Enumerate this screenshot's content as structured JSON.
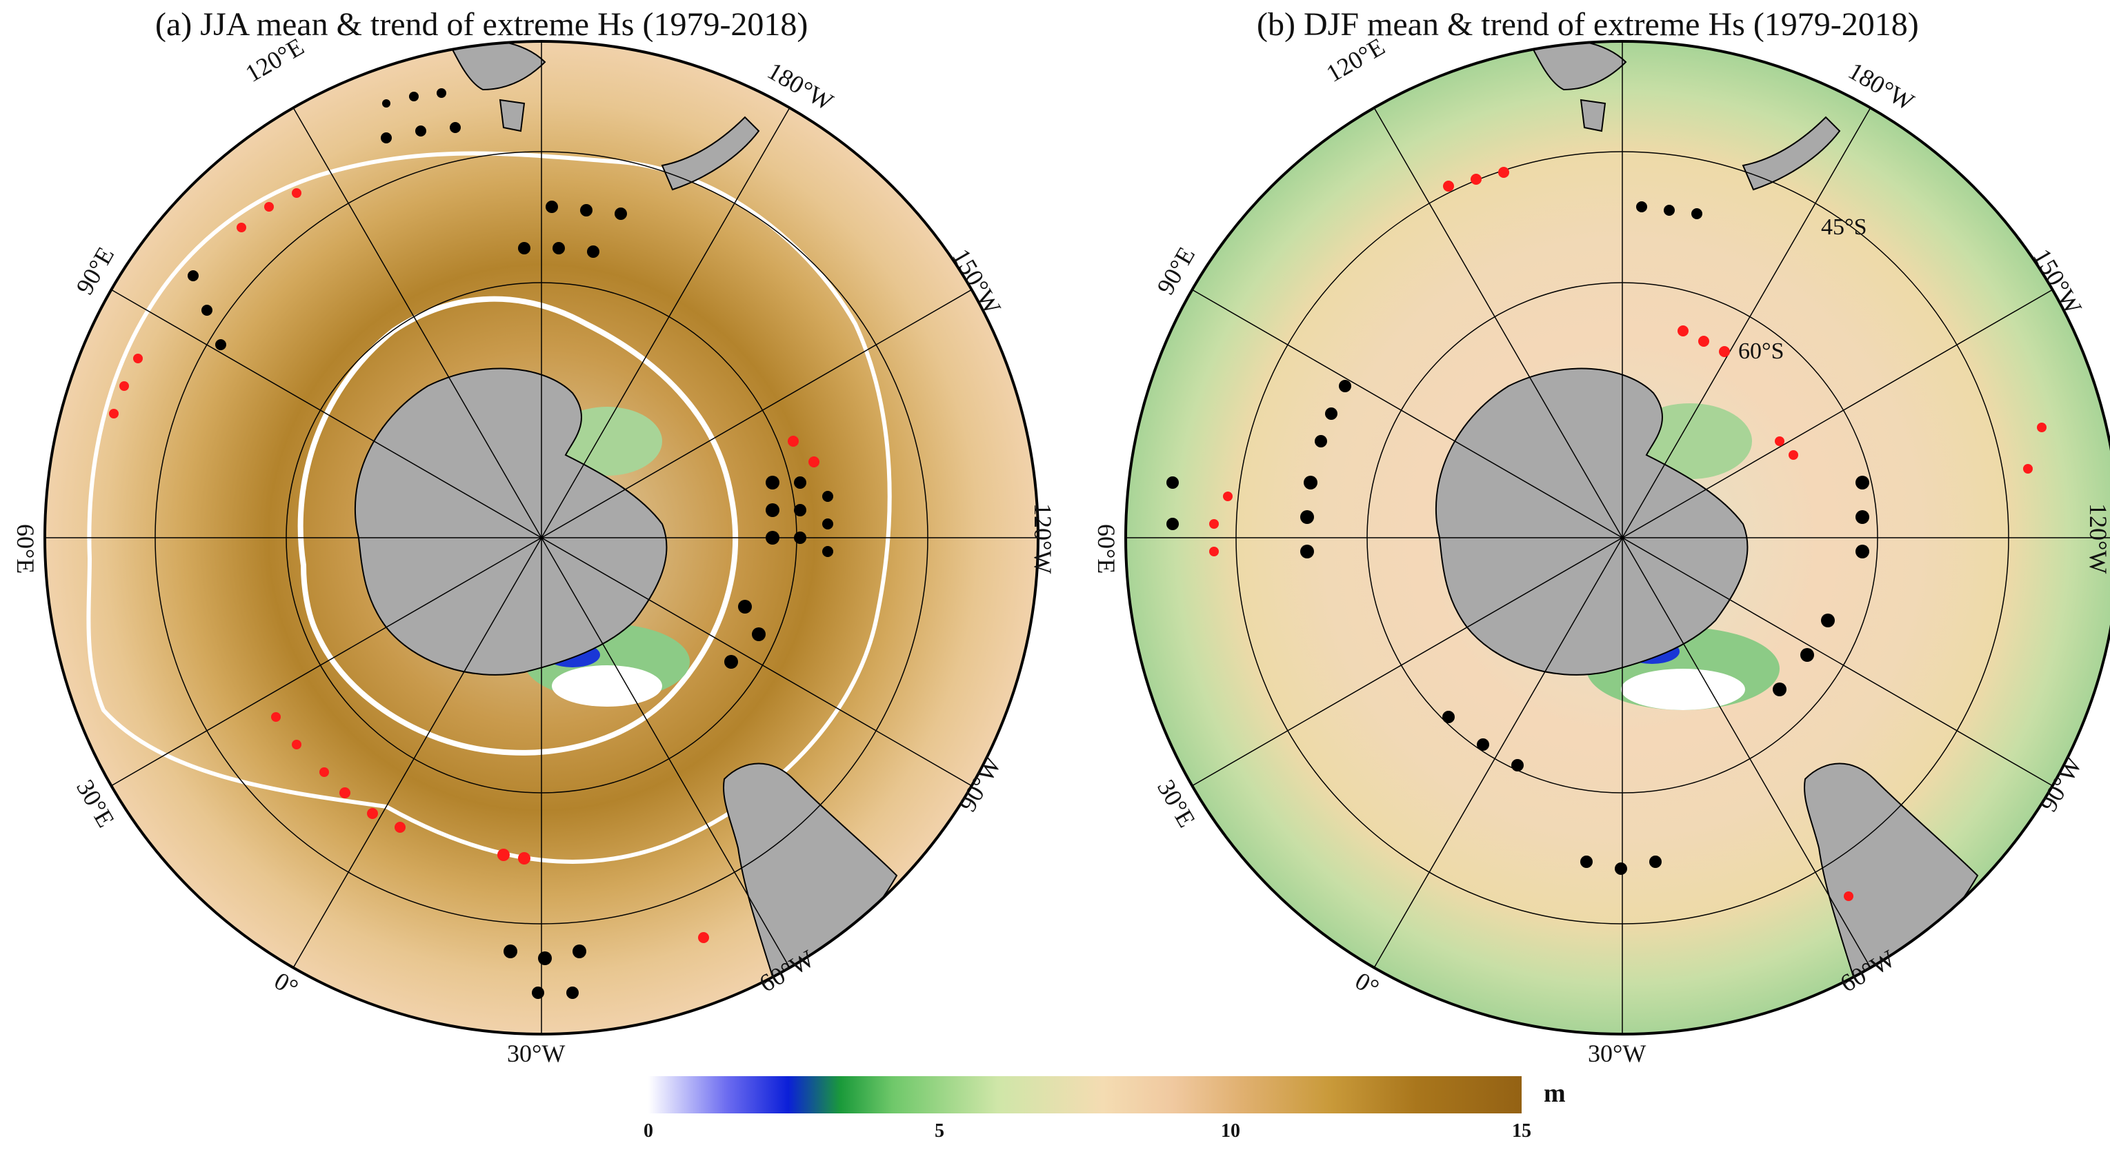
{
  "panels": [
    {
      "id": "a",
      "title": "(a) JJA mean & trend of extreme Hs (1979-2018)",
      "lon_labels": [
        "120°E",
        "180°W",
        "90°E",
        "150°W",
        "60°E",
        "120°W",
        "30°E",
        "90°W",
        "0°",
        "60°W",
        "30°W"
      ],
      "lat_labels": [],
      "field": "mostly brown (10-15 m) Southern Ocean, white 10 m contour rings",
      "dominant_trend": "mixed red (negative) and black (positive) dot arcs"
    },
    {
      "id": "b",
      "title": "(b) DJF mean & trend of extreme Hs (1979-2018)",
      "lon_labels": [
        "120°E",
        "180°W",
        "90°E",
        "150°W",
        "60°E",
        "120°W",
        "30°E",
        "90°W",
        "0°",
        "60°W",
        "30°W"
      ],
      "lat_labels": [
        "45°S",
        "60°S"
      ],
      "field": "green/beige (5-8 m), lighter than JJA",
      "dominant_trend": "mostly black dot arcs with red clusters"
    }
  ],
  "colorbar": {
    "ticks": [
      "0",
      "5",
      "10",
      "15"
    ],
    "min": 0,
    "max": 15,
    "unit": "m"
  },
  "colors": {
    "land": "#a9a9a9",
    "ocean_far_jja": "#f1d2ab",
    "ocean_mid_jja": "#d3a85c",
    "ocean_core_jja": "#b3832c",
    "ocean_far_djf": "#a8d497",
    "ocean_mid_djf": "#eddaa8",
    "ocean_core_djf": "#f4d8b8",
    "coastal_green": "#4bbf6a",
    "coastal_blue": "#1a37d6",
    "sea_ice_white": "#ffffff",
    "trend_positive_dot": "#000000",
    "trend_negative_dot": "#ff1a1a",
    "contour": "#ffffff"
  }
}
